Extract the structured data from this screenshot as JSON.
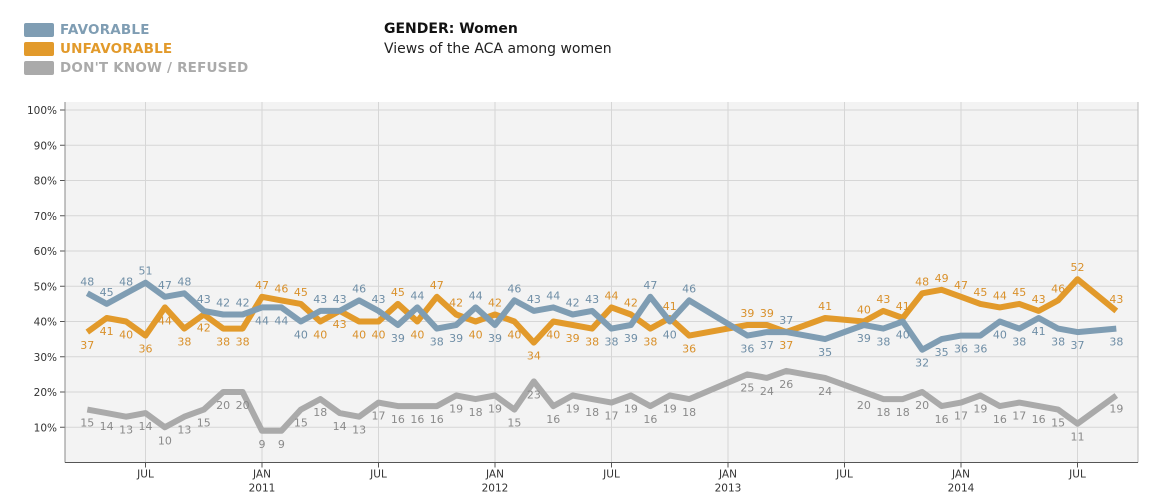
{
  "legend": [
    {
      "label": "FAVORABLE",
      "color": "#7f9db3"
    },
    {
      "label": "UNFAVORABLE",
      "color": "#e29a2b"
    },
    {
      "label": "DON'T KNOW / REFUSED",
      "color": "#aaaaaa"
    }
  ],
  "chart_data": {
    "type": "line",
    "title": "GENDER: Women",
    "subtitle": "Views of the ACA among women",
    "ylim": [
      0,
      100
    ],
    "yticks": [
      "10%",
      "20%",
      "30%",
      "40%",
      "50%",
      "60%",
      "70%",
      "80%",
      "90%",
      "100%"
    ],
    "xticks": [
      {
        "date": "2010-07",
        "label": "JUL",
        "year": ""
      },
      {
        "date": "2011-01",
        "label": "JAN",
        "year": "2011"
      },
      {
        "date": "2011-07",
        "label": "JUL",
        "year": ""
      },
      {
        "date": "2012-01",
        "label": "JAN",
        "year": "2012"
      },
      {
        "date": "2012-07",
        "label": "JUL",
        "year": ""
      },
      {
        "date": "2013-01",
        "label": "JAN",
        "year": "2013"
      },
      {
        "date": "2013-07",
        "label": "JUL",
        "year": ""
      },
      {
        "date": "2014-01",
        "label": "JAN",
        "year": "2014"
      },
      {
        "date": "2014-07",
        "label": "JUL",
        "year": ""
      }
    ],
    "grid": true,
    "x": [
      "2010-04",
      "2010-05",
      "2010-06",
      "2010-07",
      "2010-08",
      "2010-09",
      "2010-10",
      "2010-11",
      "2010-12",
      "2011-01",
      "2011-02",
      "2011-03",
      "2011-04",
      "2011-05",
      "2011-06",
      "2011-07",
      "2011-08",
      "2011-09",
      "2011-10",
      "2011-11",
      "2011-12",
      "2012-01",
      "2012-02",
      "2012-03",
      "2012-04",
      "2012-05",
      "2012-06",
      "2012-07",
      "2012-08",
      "2012-09",
      "2012-10",
      "2012-11",
      "2013-02",
      "2013-03",
      "2013-04",
      "2013-06",
      "2013-08",
      "2013-09",
      "2013-10",
      "2013-11",
      "2013-12",
      "2014-01",
      "2014-02",
      "2014-03",
      "2014-04",
      "2014-05",
      "2014-06",
      "2014-07",
      "2014-09"
    ],
    "series": [
      {
        "name": "FAVORABLE",
        "color": "#7f9db3",
        "label_color": "#6f8ea6",
        "values": [
          48,
          45,
          48,
          51,
          47,
          48,
          43,
          42,
          42,
          44,
          44,
          40,
          43,
          43,
          46,
          43,
          39,
          44,
          38,
          39,
          44,
          39,
          46,
          43,
          44,
          42,
          43,
          38,
          39,
          47,
          40,
          46,
          36,
          37,
          37,
          35,
          39,
          38,
          40,
          32,
          35,
          36,
          36,
          40,
          38,
          41,
          38,
          37,
          38
        ]
      },
      {
        "name": "UNFAVORABLE",
        "color": "#e29a2b",
        "label_color": "#d9902a",
        "values": [
          37,
          41,
          40,
          36,
          44,
          38,
          42,
          38,
          38,
          47,
          46,
          45,
          40,
          43,
          40,
          40,
          45,
          40,
          47,
          42,
          40,
          42,
          40,
          34,
          40,
          39,
          38,
          44,
          42,
          38,
          41,
          36,
          39,
          39,
          37,
          41,
          40,
          43,
          41,
          48,
          49,
          47,
          45,
          44,
          45,
          43,
          46,
          52,
          43
        ]
      },
      {
        "name": "DON'T KNOW / REFUSED",
        "color": "#aaaaaa",
        "label_color": "#8a8a8a",
        "values": [
          15,
          14,
          13,
          14,
          10,
          13,
          15,
          20,
          20,
          9,
          9,
          15,
          18,
          14,
          13,
          17,
          16,
          16,
          16,
          19,
          18,
          19,
          15,
          23,
          16,
          19,
          18,
          17,
          19,
          16,
          19,
          18,
          25,
          24,
          26,
          24,
          20,
          18,
          18,
          20,
          16,
          17,
          19,
          16,
          17,
          16,
          15,
          11,
          19
        ]
      }
    ]
  }
}
